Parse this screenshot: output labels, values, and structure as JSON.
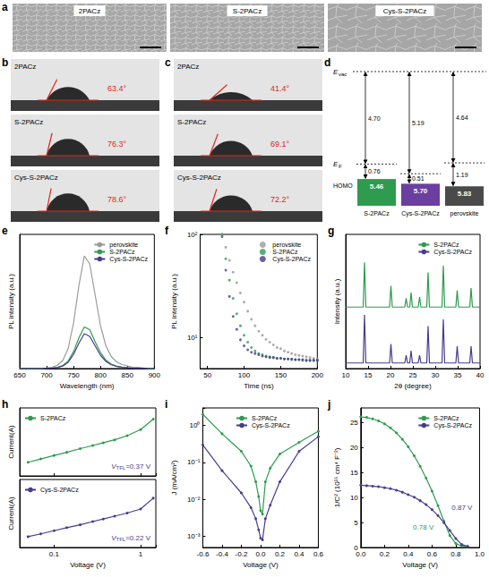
{
  "image_panel": {
    "panel": "a",
    "images": [
      "2PACz",
      "S-2PACz",
      "Cys-S-2PACz"
    ]
  },
  "contact_angle": [
    {
      "panel": "b",
      "drops": [
        {
          "label": "2PACz",
          "angle": 63.4,
          "angle_label": "63.4°"
        },
        {
          "label": "S-2PACz",
          "angle": 76.3,
          "angle_label": "76.3°"
        },
        {
          "label": "Cys-S-2PACz",
          "angle": 78.6,
          "angle_label": "78.6°"
        }
      ]
    },
    {
      "panel": "c",
      "drops": [
        {
          "label": "2PACz",
          "angle": 41.4,
          "angle_label": "41.4°"
        },
        {
          "label": "S-2PACz",
          "angle": 69.1,
          "angle_label": "69.1°"
        },
        {
          "label": "Cys-S-2PACz",
          "angle": 72.2,
          "angle_label": "72.2°"
        }
      ]
    }
  ],
  "energy_diagram": {
    "panel": "d",
    "vacuum_level": {
      "main": "E",
      "sub": "vac"
    },
    "fermi_level": {
      "main": "E",
      "sub": "F"
    },
    "level_label": "HOMO",
    "materials": [
      {
        "name": "S-2PACz",
        "color": "#2e9b4e",
        "work_function": {
          "value": 4.7,
          "label": "4.70"
        },
        "fermi_to_homo": {
          "value": 0.76,
          "label": "0.76"
        },
        "homo": {
          "value": 5.46,
          "label": "5.46"
        }
      },
      {
        "name": "Cys-S-2PACz",
        "color": "#6a3fa0",
        "work_function": {
          "value": 5.19,
          "label": "5.19"
        },
        "fermi_to_homo": {
          "value": 0.51,
          "label": "0.51"
        },
        "homo": {
          "value": 5.7,
          "label": "5.70"
        }
      },
      {
        "name": "perovskite",
        "color": "#4a4a4a",
        "work_function": {
          "value": 4.64,
          "label": "4.64"
        },
        "fermi_to_homo": {
          "value": 1.19,
          "label": "1.19"
        },
        "homo": {
          "value": 5.83,
          "label": "5.83"
        }
      }
    ]
  },
  "chart_data": [
    {
      "panel": "e",
      "type": "line",
      "x_label": "Wavelength (nm)",
      "y_label": "PL intensity (a.u.)",
      "x": [
        650,
        660,
        670,
        680,
        690,
        700,
        710,
        720,
        730,
        740,
        750,
        760,
        770,
        780,
        790,
        800,
        810,
        820,
        830,
        840,
        850,
        860,
        870,
        880,
        890,
        900
      ],
      "xlim": [
        650,
        900
      ],
      "xticks": [
        650,
        700,
        750,
        800,
        850,
        900
      ],
      "ylim": [
        0,
        1
      ],
      "tick_labels": "x",
      "legend": "top-right",
      "series": [
        {
          "name": "perovskite",
          "color": "#9a9a9a",
          "values": [
            0,
            0,
            0,
            0,
            0,
            0.005,
            0.01,
            0.025,
            0.06,
            0.15,
            0.34,
            0.62,
            0.84,
            0.78,
            0.55,
            0.32,
            0.17,
            0.09,
            0.05,
            0.03,
            0.02,
            0.01,
            0.01,
            0.005,
            0,
            0
          ]
        },
        {
          "name": "S-2PACz",
          "color": "#2e9b4e",
          "values": [
            0,
            0,
            0,
            0,
            0,
            0.002,
            0.004,
            0.01,
            0.023,
            0.056,
            0.126,
            0.23,
            0.31,
            0.29,
            0.2,
            0.12,
            0.063,
            0.033,
            0.018,
            0.011,
            0.007,
            0.004,
            0.003,
            0.002,
            0,
            0
          ]
        },
        {
          "name": "Cys-S-2PACz",
          "color": "#4a3c8c",
          "values": [
            0,
            0,
            0,
            0,
            0,
            0.002,
            0.003,
            0.008,
            0.019,
            0.047,
            0.105,
            0.19,
            0.26,
            0.24,
            0.17,
            0.1,
            0.053,
            0.028,
            0.016,
            0.009,
            0.006,
            0.003,
            0.003,
            0.002,
            0,
            0
          ]
        }
      ]
    },
    {
      "panel": "f",
      "type": "scatter",
      "x_label": "Time (ns)",
      "y_label": "PL intensity (a.u.)",
      "log": "y",
      "marker": "circle",
      "x": [
        70,
        75,
        80,
        85,
        90,
        95,
        100,
        105,
        110,
        115,
        120,
        125,
        130,
        135,
        140,
        145,
        150,
        155,
        160,
        165,
        170,
        175,
        180,
        185,
        190,
        195,
        200
      ],
      "xlim": [
        40,
        200
      ],
      "xticks": [
        50,
        100,
        150,
        200
      ],
      "ylim": [
        5,
        100
      ],
      "yticks": [
        {
          "value": 10,
          "label": "10¹"
        },
        {
          "value": 100,
          "label": "10²"
        }
      ],
      "legend": "top-right",
      "series": [
        {
          "name": "perovskite",
          "color": "#9a9a9a",
          "values": [
            100,
            75,
            56,
            43,
            34,
            27,
            22,
            18,
            15,
            13,
            11.5,
            10.5,
            9.6,
            9,
            8.5,
            8,
            7.8,
            7.4,
            7.2,
            7,
            6.8,
            6.7,
            6.6,
            6.5,
            6.4,
            6.3,
            6.2
          ]
        },
        {
          "name": "S-2PACz",
          "color": "#2e9b4e",
          "values": [
            100,
            58,
            36,
            24,
            17,
            13,
            10.5,
            9,
            8,
            7.4,
            7,
            6.8,
            6.6,
            6.5,
            6.4,
            6.3,
            6.3,
            6.2,
            6.2,
            6.1,
            6.1,
            6.1,
            6,
            6,
            6,
            6,
            6
          ]
        },
        {
          "name": "Cys-S-2PACz",
          "color": "#4a3c8c",
          "values": [
            95,
            45,
            25,
            16,
            12,
            9.5,
            8.3,
            7.6,
            7.2,
            7,
            6.8,
            6.6,
            6.5,
            6.4,
            6.4,
            6.3,
            6.3,
            6.2,
            6.2,
            6.2,
            6.1,
            6.1,
            6.1,
            6,
            6,
            6,
            6
          ]
        }
      ]
    },
    {
      "panel": "g",
      "type": "line",
      "x_label": "2θ (degree)",
      "y_label": "Intensity (a.u.)",
      "x": [
        10,
        13.9,
        14.2,
        14.5,
        19.8,
        20.1,
        20.4,
        23.2,
        23.5,
        23.8,
        24.3,
        24.6,
        24.9,
        26.2,
        26.5,
        26.8,
        28.1,
        28.4,
        28.7,
        31.5,
        31.8,
        32.1,
        34.6,
        34.9,
        35.2,
        37.7,
        38,
        38.3,
        40
      ],
      "xlim": [
        10,
        40
      ],
      "xticks": [
        10,
        15,
        20,
        25,
        30,
        35,
        40
      ],
      "ylim": [
        0,
        1.2
      ],
      "tick_labels": "x",
      "legend": "top-right",
      "series": [
        {
          "name": "S-2PACz",
          "color": "#2e9b4e",
          "values": [
            0.55,
            0.55,
            0.95,
            0.55,
            0.55,
            0.74,
            0.55,
            0.55,
            0.63,
            0.55,
            0.55,
            0.68,
            0.55,
            0.55,
            0.64,
            0.55,
            0.55,
            0.86,
            0.55,
            0.55,
            0.92,
            0.55,
            0.55,
            0.7,
            0.55,
            0.55,
            0.72,
            0.55,
            0.55
          ]
        },
        {
          "name": "Cys-S-2PACz",
          "color": "#4a3c8c",
          "values": [
            0.05,
            0.05,
            0.48,
            0.05,
            0.05,
            0.22,
            0.05,
            0.05,
            0.12,
            0.05,
            0.05,
            0.16,
            0.05,
            0.05,
            0.12,
            0.05,
            0.05,
            0.38,
            0.05,
            0.05,
            0.44,
            0.05,
            0.05,
            0.2,
            0.05,
            0.05,
            0.2,
            0.05,
            0.05
          ]
        }
      ]
    },
    {
      "panel": "h",
      "type": "line",
      "y_label": "Current(A)",
      "log": true,
      "marker": "circle",
      "tick_labels": false,
      "x": [
        0.05,
        0.07,
        0.1,
        0.14,
        0.2,
        0.28,
        0.37,
        0.5,
        0.7,
        1,
        1.4
      ],
      "xlim": [
        0.04,
        1.5
      ],
      "xticks": [
        0.1,
        1
      ],
      "ylim": [
        1e-06,
        0.001
      ],
      "legend": "top-left",
      "series": [
        {
          "name": "S-2PACz",
          "color": "#2e9b4e",
          "values": [
            4e-06,
            5.6e-06,
            8e-06,
            1.1e-05,
            1.6e-05,
            2.2e-05,
            2.9e-05,
            3.9e-05,
            6e-05,
            0.00011,
            0.00032
          ]
        }
      ],
      "annotations": [
        {
          "symbol": "V",
          "subscript": "TFL",
          "text": "=0.37 V",
          "color": "#4a3c8c"
        }
      ]
    },
    {
      "type": "line",
      "x_label": "Voltage (V)",
      "y_label": "Current(A)",
      "log": true,
      "marker": "circle",
      "tick_labels": "x",
      "x": [
        0.05,
        0.07,
        0.1,
        0.14,
        0.2,
        0.28,
        0.37,
        0.5,
        0.7,
        1,
        1.4
      ],
      "xlim": [
        0.04,
        1.5
      ],
      "xticks": [
        0.1,
        1
      ],
      "ylim": [
        1e-06,
        0.001
      ],
      "legend": "top-left",
      "series": [
        {
          "name": "Cys-S-2PACz",
          "color": "#4a3c8c",
          "values": [
            3e-06,
            4e-06,
            5.5e-06,
            7.5e-06,
            1e-05,
            1.4e-05,
            1.8e-05,
            2.4e-05,
            3.3e-05,
            5e-05,
            0.00015
          ]
        }
      ],
      "annotations": [
        {
          "symbol": "V",
          "subscript": "TFL",
          "text": "=0.22 V",
          "color": "#4a3c8c"
        }
      ]
    },
    {
      "panel": "i",
      "type": "line",
      "x_label": "Voltage (V)",
      "y_label": "J (mA/cm²)",
      "log": "y",
      "marker": "circle",
      "x": [
        -0.6,
        -0.4,
        -0.2,
        -0.1,
        -0.05,
        -0.02,
        0,
        0.02,
        0.05,
        0.1,
        0.2,
        0.4,
        0.6
      ],
      "xlim": [
        -0.6,
        0.6
      ],
      "xticks": [
        -0.6,
        -0.4,
        -0.2,
        {
          "value": 0,
          "label": "0.0"
        },
        0.2,
        0.4,
        0.6
      ],
      "ylim": [
        0.0005,
        3
      ],
      "yticks": [
        {
          "value": 0.001,
          "label": "10⁻³"
        },
        {
          "value": 0.01,
          "label": "10⁻²"
        },
        {
          "value": 0.1,
          "label": "10⁻¹"
        },
        {
          "value": 1,
          "label": "10⁰"
        }
      ],
      "legend": "top",
      "series": [
        {
          "name": "S-2PACz",
          "color": "#2e9b4e",
          "values": [
            2,
            0.6,
            0.2,
            0.08,
            0.03,
            0.012,
            0.005,
            0.004,
            0.03,
            0.07,
            0.17,
            0.35,
            0.7
          ]
        },
        {
          "name": "Cys-S-2PACz",
          "color": "#4a3c8c",
          "values": [
            0.3,
            0.06,
            0.015,
            0.006,
            0.003,
            0.0015,
            0.0009,
            0.0008,
            0.003,
            0.007,
            0.03,
            0.2,
            0.5
          ]
        }
      ]
    },
    {
      "panel": "j",
      "type": "line",
      "x_label": "Voltage (V)",
      "y_label": "1/C² (10¹⁵ cm⁴ F⁻²)",
      "marker": "circle",
      "x": [
        0,
        0.05,
        0.1,
        0.15,
        0.2,
        0.25,
        0.3,
        0.35,
        0.4,
        0.45,
        0.5,
        0.55,
        0.6,
        0.65,
        0.7,
        0.75,
        0.8,
        0.85,
        0.9
      ],
      "xlim": [
        0,
        1
      ],
      "xticks": [
        {
          "value": 0,
          "label": "0.0"
        },
        0.2,
        0.4,
        0.6,
        0.8,
        {
          "value": 1,
          "label": "1.0"
        }
      ],
      "ylim": [
        0,
        28
      ],
      "yticks": [
        0,
        5,
        10,
        15,
        20,
        25
      ],
      "legend": "top-right",
      "series": [
        {
          "name": "S-2PACz",
          "color": "#2e9b4e",
          "values": [
            26.2,
            26.1,
            25.8,
            25.4,
            24.8,
            24,
            23,
            21.7,
            20.2,
            18.4,
            16.3,
            13.9,
            11.3,
            8.4,
            5.3,
            2.4,
            0.8,
            0.3,
            0.2
          ]
        },
        {
          "name": "Cys-S-2PACz",
          "color": "#4a3c8c",
          "values": [
            12.5,
            12.4,
            12.3,
            12.2,
            12,
            11.8,
            11.5,
            11.1,
            10.6,
            10.1,
            9.4,
            8.6,
            7.6,
            6.4,
            5,
            3.4,
            1.8,
            0.6,
            0.2
          ]
        }
      ],
      "annotations": [
        {
          "text": "0.78 V",
          "color": "#2e9b4e"
        },
        {
          "text": "0.87 V",
          "color": "#4a3c8c"
        }
      ]
    }
  ]
}
